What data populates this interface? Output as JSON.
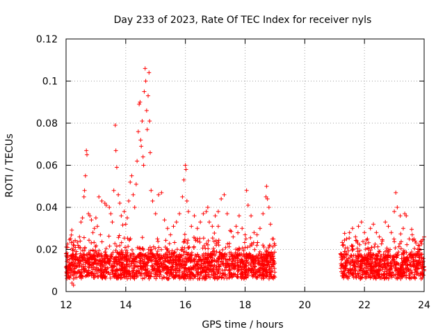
{
  "chart_data": {
    "type": "scatter",
    "title": "Day 233 of 2023, Rate Of TEC Index for receiver nyls",
    "xlabel": "GPS time / hours",
    "ylabel": "ROTI / TECUs",
    "xlim": [
      12,
      24
    ],
    "ylim": [
      0,
      0.12
    ],
    "xticks": [
      "12",
      "14",
      "16",
      "18",
      "20",
      "22",
      "24"
    ],
    "yticks": [
      "0",
      "0.02",
      "0.04",
      "0.06",
      "0.08",
      "0.1",
      "0.12"
    ],
    "grid": true,
    "marker": "plus",
    "series": [
      {
        "name": "ROTI",
        "color": "#ff0000",
        "points": [
          [
            12.0,
            0.018
          ],
          [
            12.05,
            0.021
          ],
          [
            12.1,
            0.012
          ],
          [
            12.2,
            0.004
          ],
          [
            12.25,
            0.003
          ],
          [
            12.3,
            0.015
          ],
          [
            12.35,
            0.019
          ],
          [
            12.4,
            0.022
          ],
          [
            12.45,
            0.026
          ],
          [
            12.5,
            0.033
          ],
          [
            12.55,
            0.035
          ],
          [
            12.6,
            0.045
          ],
          [
            12.62,
            0.048
          ],
          [
            12.65,
            0.055
          ],
          [
            12.68,
            0.067
          ],
          [
            12.7,
            0.065
          ],
          [
            12.75,
            0.037
          ],
          [
            12.8,
            0.036
          ],
          [
            12.85,
            0.034
          ],
          [
            12.9,
            0.028
          ],
          [
            12.95,
            0.03
          ],
          [
            13.0,
            0.035
          ],
          [
            13.05,
            0.031
          ],
          [
            13.1,
            0.045
          ],
          [
            13.15,
            0.027
          ],
          [
            13.2,
            0.043
          ],
          [
            13.3,
            0.042
          ],
          [
            13.35,
            0.041
          ],
          [
            13.45,
            0.04
          ],
          [
            13.5,
            0.037
          ],
          [
            13.55,
            0.033
          ],
          [
            13.6,
            0.048
          ],
          [
            13.65,
            0.079
          ],
          [
            13.67,
            0.067
          ],
          [
            13.7,
            0.059
          ],
          [
            13.75,
            0.046
          ],
          [
            13.8,
            0.042
          ],
          [
            13.85,
            0.036
          ],
          [
            13.95,
            0.038
          ],
          [
            14.0,
            0.032
          ],
          [
            14.05,
            0.035
          ],
          [
            14.1,
            0.043
          ],
          [
            14.15,
            0.052
          ],
          [
            14.2,
            0.055
          ],
          [
            14.25,
            0.046
          ],
          [
            14.3,
            0.04
          ],
          [
            14.35,
            0.051
          ],
          [
            14.38,
            0.062
          ],
          [
            14.42,
            0.076
          ],
          [
            14.45,
            0.089
          ],
          [
            14.48,
            0.09
          ],
          [
            14.5,
            0.072
          ],
          [
            14.52,
            0.069
          ],
          [
            14.55,
            0.081
          ],
          [
            14.58,
            0.064
          ],
          [
            14.6,
            0.06
          ],
          [
            14.62,
            0.095
          ],
          [
            14.65,
            0.106
          ],
          [
            14.67,
            0.1
          ],
          [
            14.7,
            0.086
          ],
          [
            14.72,
            0.077
          ],
          [
            14.75,
            0.093
          ],
          [
            14.78,
            0.104
          ],
          [
            14.8,
            0.081
          ],
          [
            14.82,
            0.066
          ],
          [
            14.85,
            0.048
          ],
          [
            14.9,
            0.043
          ],
          [
            15.0,
            0.037
          ],
          [
            15.1,
            0.046
          ],
          [
            15.2,
            0.047
          ],
          [
            15.3,
            0.034
          ],
          [
            15.4,
            0.03
          ],
          [
            15.5,
            0.027
          ],
          [
            15.6,
            0.031
          ],
          [
            15.7,
            0.033
          ],
          [
            15.8,
            0.037
          ],
          [
            15.9,
            0.045
          ],
          [
            15.95,
            0.053
          ],
          [
            16.0,
            0.06
          ],
          [
            16.02,
            0.058
          ],
          [
            16.05,
            0.043
          ],
          [
            16.1,
            0.038
          ],
          [
            16.2,
            0.031
          ],
          [
            16.3,
            0.036
          ],
          [
            16.4,
            0.03
          ],
          [
            16.5,
            0.033
          ],
          [
            16.6,
            0.037
          ],
          [
            16.7,
            0.038
          ],
          [
            16.75,
            0.04
          ],
          [
            16.8,
            0.033
          ],
          [
            16.9,
            0.031
          ],
          [
            17.0,
            0.036
          ],
          [
            17.1,
            0.038
          ],
          [
            17.2,
            0.044
          ],
          [
            17.3,
            0.046
          ],
          [
            17.4,
            0.037
          ],
          [
            17.5,
            0.029
          ],
          [
            17.6,
            0.026
          ],
          [
            17.7,
            0.031
          ],
          [
            17.8,
            0.036
          ],
          [
            17.9,
            0.03
          ],
          [
            18.0,
            0.027
          ],
          [
            18.05,
            0.048
          ],
          [
            18.1,
            0.041
          ],
          [
            18.2,
            0.036
          ],
          [
            18.3,
            0.028
          ],
          [
            18.4,
            0.027
          ],
          [
            18.5,
            0.03
          ],
          [
            18.6,
            0.037
          ],
          [
            18.7,
            0.045
          ],
          [
            18.72,
            0.05
          ],
          [
            18.75,
            0.044
          ],
          [
            18.8,
            0.04
          ],
          [
            18.85,
            0.032
          ],
          [
            18.95,
            0.025
          ],
          [
            19.0,
            0.022
          ],
          [
            21.2,
            0.018
          ],
          [
            21.3,
            0.022
          ],
          [
            21.4,
            0.025
          ],
          [
            21.5,
            0.028
          ],
          [
            21.6,
            0.03
          ],
          [
            21.7,
            0.026
          ],
          [
            21.8,
            0.031
          ],
          [
            21.9,
            0.033
          ],
          [
            22.0,
            0.028
          ],
          [
            22.1,
            0.025
          ],
          [
            22.2,
            0.03
          ],
          [
            22.3,
            0.032
          ],
          [
            22.4,
            0.028
          ],
          [
            22.5,
            0.026
          ],
          [
            22.6,
            0.024
          ],
          [
            22.7,
            0.033
          ],
          [
            22.8,
            0.031
          ],
          [
            22.9,
            0.028
          ],
          [
            23.0,
            0.038
          ],
          [
            23.05,
            0.047
          ],
          [
            23.1,
            0.04
          ],
          [
            23.2,
            0.036
          ],
          [
            23.3,
            0.03
          ],
          [
            23.35,
            0.037
          ],
          [
            23.4,
            0.036
          ],
          [
            23.5,
            0.025
          ],
          [
            23.6,
            0.027
          ],
          [
            23.7,
            0.024
          ],
          [
            23.8,
            0.022
          ],
          [
            23.9,
            0.024
          ],
          [
            24.0,
            0.026
          ]
        ]
      }
    ]
  }
}
